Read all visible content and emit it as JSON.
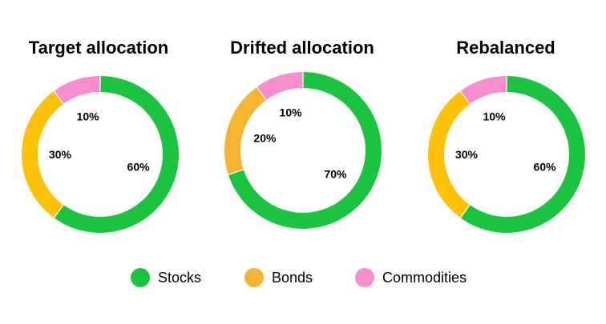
{
  "chart_data": [
    {
      "type": "pie",
      "variant": "donut",
      "title": "Target allocation",
      "categories": [
        "Stocks",
        "Bonds",
        "Commodities"
      ],
      "values": [
        60,
        30,
        10
      ],
      "labels": [
        "60%",
        "30%",
        "10%"
      ],
      "colors": [
        "#1ac43f",
        "#ffc107",
        "#f78dce"
      ]
    },
    {
      "type": "pie",
      "variant": "donut",
      "title": "Drifted allocation",
      "categories": [
        "Stocks",
        "Bonds",
        "Commodities"
      ],
      "values": [
        70,
        20,
        10
      ],
      "labels": [
        "70%",
        "20%",
        "10%"
      ],
      "colors": [
        "#1ac43f",
        "#f5b330",
        "#f78dce"
      ]
    },
    {
      "type": "pie",
      "variant": "donut",
      "title": "Rebalanced",
      "categories": [
        "Stocks",
        "Bonds",
        "Commodities"
      ],
      "values": [
        60,
        30,
        10
      ],
      "labels": [
        "60%",
        "30%",
        "10%"
      ],
      "colors": [
        "#1ac43f",
        "#ffc107",
        "#f78dce"
      ]
    }
  ],
  "legend": {
    "placement": "bottom-center",
    "items": [
      {
        "label": "Stocks",
        "color": "#1ac43f"
      },
      {
        "label": "Bonds",
        "color": "#f5b330"
      },
      {
        "label": "Commodities",
        "color": "#f78dce"
      }
    ]
  }
}
